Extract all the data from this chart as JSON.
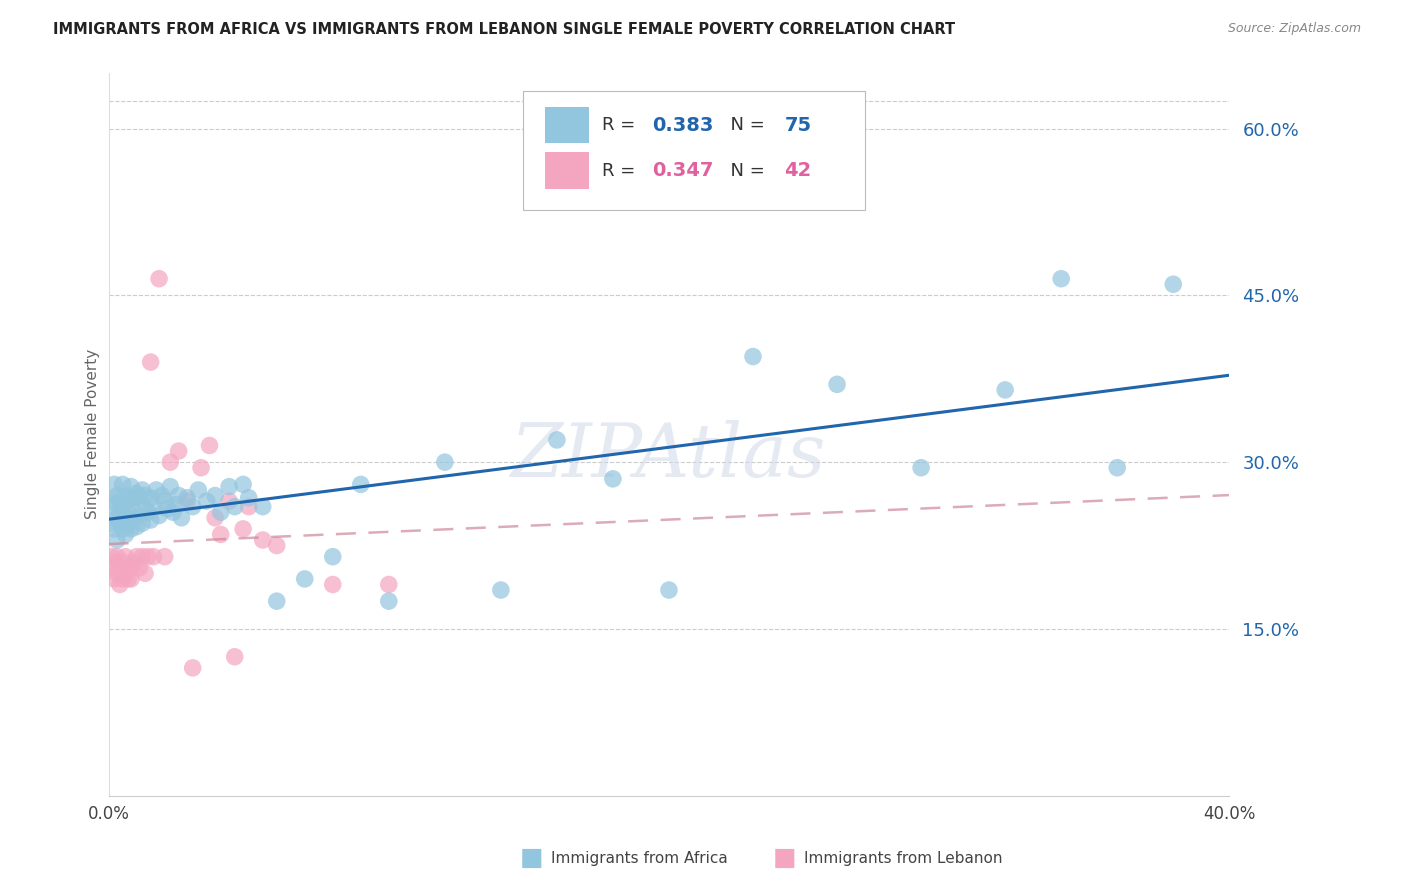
{
  "title": "IMMIGRANTS FROM AFRICA VS IMMIGRANTS FROM LEBANON SINGLE FEMALE POVERTY CORRELATION CHART",
  "source": "Source: ZipAtlas.com",
  "ylabel": "Single Female Poverty",
  "legend_africa": "Immigrants from Africa",
  "legend_lebanon": "Immigrants from Lebanon",
  "r_africa": 0.383,
  "n_africa": 75,
  "r_lebanon": 0.347,
  "n_lebanon": 42,
  "xlim": [
    0.0,
    0.4
  ],
  "ylim": [
    0.0,
    0.65
  ],
  "x_ticks": [
    0.0,
    0.05,
    0.1,
    0.15,
    0.2,
    0.25,
    0.3,
    0.35,
    0.4
  ],
  "x_tick_labels": [
    "0.0%",
    "",
    "",
    "",
    "",
    "",
    "",
    "",
    "40.0%"
  ],
  "y_ticks_right": [
    0.15,
    0.3,
    0.45,
    0.6
  ],
  "color_africa": "#92c5de",
  "color_lebanon": "#f4a6c0",
  "line_color_africa": "#2166ac",
  "line_color_lebanon": "#cc8899",
  "grid_color": "#cccccc",
  "africa_x": [
    0.001,
    0.001,
    0.002,
    0.002,
    0.002,
    0.003,
    0.003,
    0.003,
    0.004,
    0.004,
    0.004,
    0.005,
    0.005,
    0.005,
    0.006,
    0.006,
    0.006,
    0.007,
    0.007,
    0.007,
    0.008,
    0.008,
    0.008,
    0.009,
    0.009,
    0.01,
    0.01,
    0.011,
    0.011,
    0.012,
    0.012,
    0.013,
    0.013,
    0.014,
    0.015,
    0.015,
    0.016,
    0.017,
    0.018,
    0.019,
    0.02,
    0.021,
    0.022,
    0.023,
    0.024,
    0.025,
    0.026,
    0.028,
    0.03,
    0.032,
    0.035,
    0.038,
    0.04,
    0.043,
    0.045,
    0.048,
    0.05,
    0.055,
    0.06,
    0.07,
    0.08,
    0.09,
    0.1,
    0.12,
    0.14,
    0.16,
    0.18,
    0.2,
    0.23,
    0.26,
    0.29,
    0.32,
    0.34,
    0.36,
    0.38
  ],
  "africa_y": [
    0.245,
    0.265,
    0.26,
    0.24,
    0.28,
    0.25,
    0.23,
    0.27,
    0.245,
    0.265,
    0.255,
    0.24,
    0.26,
    0.28,
    0.25,
    0.235,
    0.27,
    0.245,
    0.265,
    0.255,
    0.24,
    0.26,
    0.278,
    0.248,
    0.268,
    0.242,
    0.272,
    0.252,
    0.268,
    0.245,
    0.275,
    0.258,
    0.27,
    0.255,
    0.268,
    0.248,
    0.26,
    0.275,
    0.252,
    0.27,
    0.265,
    0.258,
    0.278,
    0.255,
    0.262,
    0.27,
    0.25,
    0.268,
    0.26,
    0.275,
    0.265,
    0.27,
    0.255,
    0.278,
    0.26,
    0.28,
    0.268,
    0.26,
    0.175,
    0.195,
    0.215,
    0.28,
    0.175,
    0.3,
    0.185,
    0.32,
    0.285,
    0.185,
    0.395,
    0.37,
    0.295,
    0.365,
    0.465,
    0.295,
    0.46
  ],
  "lebanon_x": [
    0.001,
    0.001,
    0.002,
    0.002,
    0.003,
    0.003,
    0.004,
    0.004,
    0.005,
    0.005,
    0.006,
    0.006,
    0.007,
    0.007,
    0.008,
    0.008,
    0.009,
    0.01,
    0.011,
    0.012,
    0.013,
    0.014,
    0.015,
    0.016,
    0.018,
    0.02,
    0.022,
    0.025,
    0.028,
    0.03,
    0.033,
    0.036,
    0.038,
    0.04,
    0.043,
    0.045,
    0.048,
    0.05,
    0.055,
    0.06,
    0.08,
    0.1
  ],
  "lebanon_y": [
    0.215,
    0.205,
    0.195,
    0.21,
    0.2,
    0.215,
    0.19,
    0.205,
    0.195,
    0.21,
    0.2,
    0.215,
    0.195,
    0.205,
    0.195,
    0.205,
    0.21,
    0.215,
    0.205,
    0.215,
    0.2,
    0.215,
    0.39,
    0.215,
    0.465,
    0.215,
    0.3,
    0.31,
    0.265,
    0.115,
    0.295,
    0.315,
    0.25,
    0.235,
    0.265,
    0.125,
    0.24,
    0.26,
    0.23,
    0.225,
    0.19,
    0.19
  ]
}
